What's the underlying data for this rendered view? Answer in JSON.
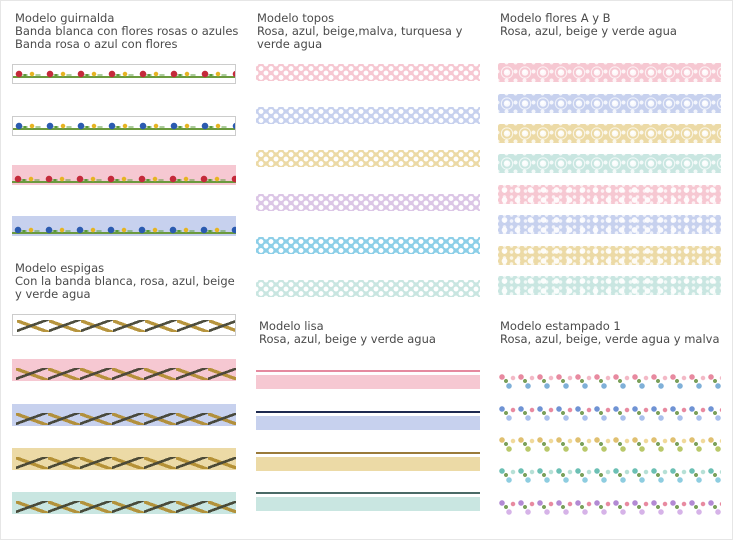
{
  "sections": {
    "guirnalda": {
      "title": "Modelo guirnalda",
      "line1": "Banda blanca con flores rosas o azules",
      "line2": "Banda rosa o azul con flores"
    },
    "espigas": {
      "title": "Modelo espigas",
      "line1": "Con la banda blanca, rosa, azul, beige",
      "line2": " y verde agua"
    },
    "topos": {
      "title": "Modelo topos",
      "line1": "Rosa, azul, beige,malva, turquesa y",
      "line2": "verde agua"
    },
    "lisa": {
      "title": "Modelo lisa",
      "line1": "Rosa, azul, beige y verde agua"
    },
    "flores": {
      "title": "Modelo flores A y B",
      "line1": "Rosa, azul, beige y verde agua"
    },
    "estampado": {
      "title": "Modelo estampado 1",
      "line1": "Rosa, azul, beige, verde agua y malva"
    }
  },
  "colors": {
    "rosa": "#f6c8d2",
    "azul": "#c7d1ee",
    "beige": "#ecdaa6",
    "malva": "#dcc6e6",
    "turquesa": "#8dcfe8",
    "verde_agua": "#c9e6e1",
    "blanco": "#ffffff"
  }
}
